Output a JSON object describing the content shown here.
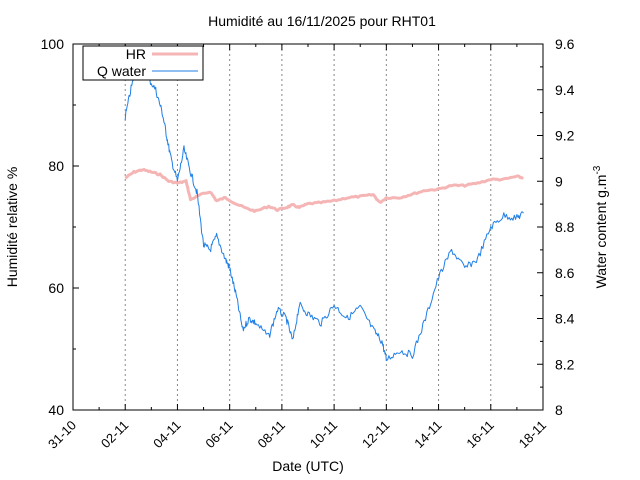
{
  "chart_data": {
    "type": "line",
    "title": "Humidité au 16/11/2025 pour RHT01",
    "xlabel": "Date (UTC)",
    "ylabel_left": "Humidité relative %",
    "ylabel_right_base": "Water content g.m",
    "ylabel_right_sup": "-3",
    "grid": "vertical dashed",
    "legend_position": "top-left",
    "x_ticks": [
      "31-10",
      "02-11",
      "04-11",
      "06-11",
      "08-11",
      "10-11",
      "12-11",
      "14-11",
      "16-11",
      "18-11"
    ],
    "x_range_days": [
      "2025-10-31",
      "2025-11-18"
    ],
    "y_left_range": [
      40,
      100
    ],
    "y_left_ticks": [
      "40",
      "60",
      "80",
      "100"
    ],
    "y_right_range": [
      8,
      9.6
    ],
    "y_right_ticks": [
      "8",
      "8.2",
      "8.4",
      "8.6",
      "8.8",
      "9",
      "9.2",
      "9.4",
      "9.6"
    ],
    "series": [
      {
        "name": "HR",
        "axis": "left",
        "color": "#f5b5b5",
        "points": [
          [
            "2025-11-02 00:00",
            78.0
          ],
          [
            "2025-11-02 08:00",
            79.0
          ],
          [
            "2025-11-02 16:00",
            79.4
          ],
          [
            "2025-11-03 00:00",
            79.0
          ],
          [
            "2025-11-03 08:00",
            78.6
          ],
          [
            "2025-11-03 16:00",
            77.5
          ],
          [
            "2025-11-04 00:00",
            77.2
          ],
          [
            "2025-11-04 08:00",
            77.5
          ],
          [
            "2025-11-04 12:00",
            74.5
          ],
          [
            "2025-11-04 20:00",
            75.2
          ],
          [
            "2025-11-05 06:00",
            75.8
          ],
          [
            "2025-11-05 12:00",
            74.3
          ],
          [
            "2025-11-05 20:00",
            74.8
          ],
          [
            "2025-11-06 06:00",
            73.8
          ],
          [
            "2025-11-06 16:00",
            73.0
          ],
          [
            "2025-11-07 00:00",
            72.6
          ],
          [
            "2025-11-07 12:00",
            73.4
          ],
          [
            "2025-11-07 20:00",
            72.8
          ],
          [
            "2025-11-08 04:00",
            73.2
          ],
          [
            "2025-11-08 10:00",
            73.6
          ],
          [
            "2025-11-08 16:00",
            73.2
          ],
          [
            "2025-11-09 00:00",
            73.8
          ],
          [
            "2025-11-09 12:00",
            74.0
          ],
          [
            "2025-11-10 00:00",
            74.3
          ],
          [
            "2025-11-10 12:00",
            74.8
          ],
          [
            "2025-11-11 00:00",
            75.0
          ],
          [
            "2025-11-11 12:00",
            75.3
          ],
          [
            "2025-11-11 18:00",
            74.0
          ],
          [
            "2025-11-12 00:00",
            74.8
          ],
          [
            "2025-11-12 12:00",
            74.8
          ],
          [
            "2025-11-13 00:00",
            75.4
          ],
          [
            "2025-11-13 12:00",
            76.0
          ],
          [
            "2025-11-14 00:00",
            76.2
          ],
          [
            "2025-11-14 12:00",
            76.8
          ],
          [
            "2025-11-15 00:00",
            76.8
          ],
          [
            "2025-11-15 12:00",
            77.2
          ],
          [
            "2025-11-16 00:00",
            77.8
          ],
          [
            "2025-11-16 12:00",
            77.8
          ],
          [
            "2025-11-17 00:00",
            78.3
          ],
          [
            "2025-11-17 06:00",
            78.0
          ]
        ]
      },
      {
        "name": "Q water",
        "axis": "right",
        "color": "#1f7fe6",
        "points": [
          [
            "2025-11-02 00:00",
            9.28
          ],
          [
            "2025-11-02 06:00",
            9.42
          ],
          [
            "2025-11-02 12:00",
            9.5
          ],
          [
            "2025-11-02 20:00",
            9.46
          ],
          [
            "2025-11-03 04:00",
            9.4
          ],
          [
            "2025-11-03 10:00",
            9.3
          ],
          [
            "2025-11-03 14:00",
            9.2
          ],
          [
            "2025-11-03 18:00",
            9.1
          ],
          [
            "2025-11-04 00:00",
            9.0
          ],
          [
            "2025-11-04 06:00",
            9.14
          ],
          [
            "2025-11-04 12:00",
            9.04
          ],
          [
            "2025-11-04 18:00",
            8.95
          ],
          [
            "2025-11-05 00:00",
            8.72
          ],
          [
            "2025-11-05 06:00",
            8.7
          ],
          [
            "2025-11-05 12:00",
            8.76
          ],
          [
            "2025-11-05 20:00",
            8.66
          ],
          [
            "2025-11-06 00:00",
            8.62
          ],
          [
            "2025-11-06 06:00",
            8.5
          ],
          [
            "2025-11-06 12:00",
            8.35
          ],
          [
            "2025-11-06 18:00",
            8.4
          ],
          [
            "2025-11-07 00:00",
            8.38
          ],
          [
            "2025-11-07 12:00",
            8.32
          ],
          [
            "2025-11-07 20:00",
            8.44
          ],
          [
            "2025-11-08 04:00",
            8.4
          ],
          [
            "2025-11-08 10:00",
            8.3
          ],
          [
            "2025-11-08 16:00",
            8.46
          ],
          [
            "2025-11-09 00:00",
            8.42
          ],
          [
            "2025-11-09 12:00",
            8.38
          ],
          [
            "2025-11-10 00:00",
            8.46
          ],
          [
            "2025-11-10 12:00",
            8.4
          ],
          [
            "2025-11-11 00:00",
            8.45
          ],
          [
            "2025-11-11 12:00",
            8.35
          ],
          [
            "2025-11-11 20:00",
            8.3
          ],
          [
            "2025-11-12 00:00",
            8.22
          ],
          [
            "2025-11-12 12:00",
            8.26
          ],
          [
            "2025-11-13 00:00",
            8.24
          ],
          [
            "2025-11-13 12:00",
            8.4
          ],
          [
            "2025-11-14 00:00",
            8.58
          ],
          [
            "2025-11-14 12:00",
            8.7
          ],
          [
            "2025-11-15 00:00",
            8.62
          ],
          [
            "2025-11-15 12:00",
            8.66
          ],
          [
            "2025-11-16 00:00",
            8.8
          ],
          [
            "2025-11-16 12:00",
            8.85
          ],
          [
            "2025-11-17 00:00",
            8.84
          ],
          [
            "2025-11-17 06:00",
            8.86
          ]
        ]
      }
    ]
  }
}
